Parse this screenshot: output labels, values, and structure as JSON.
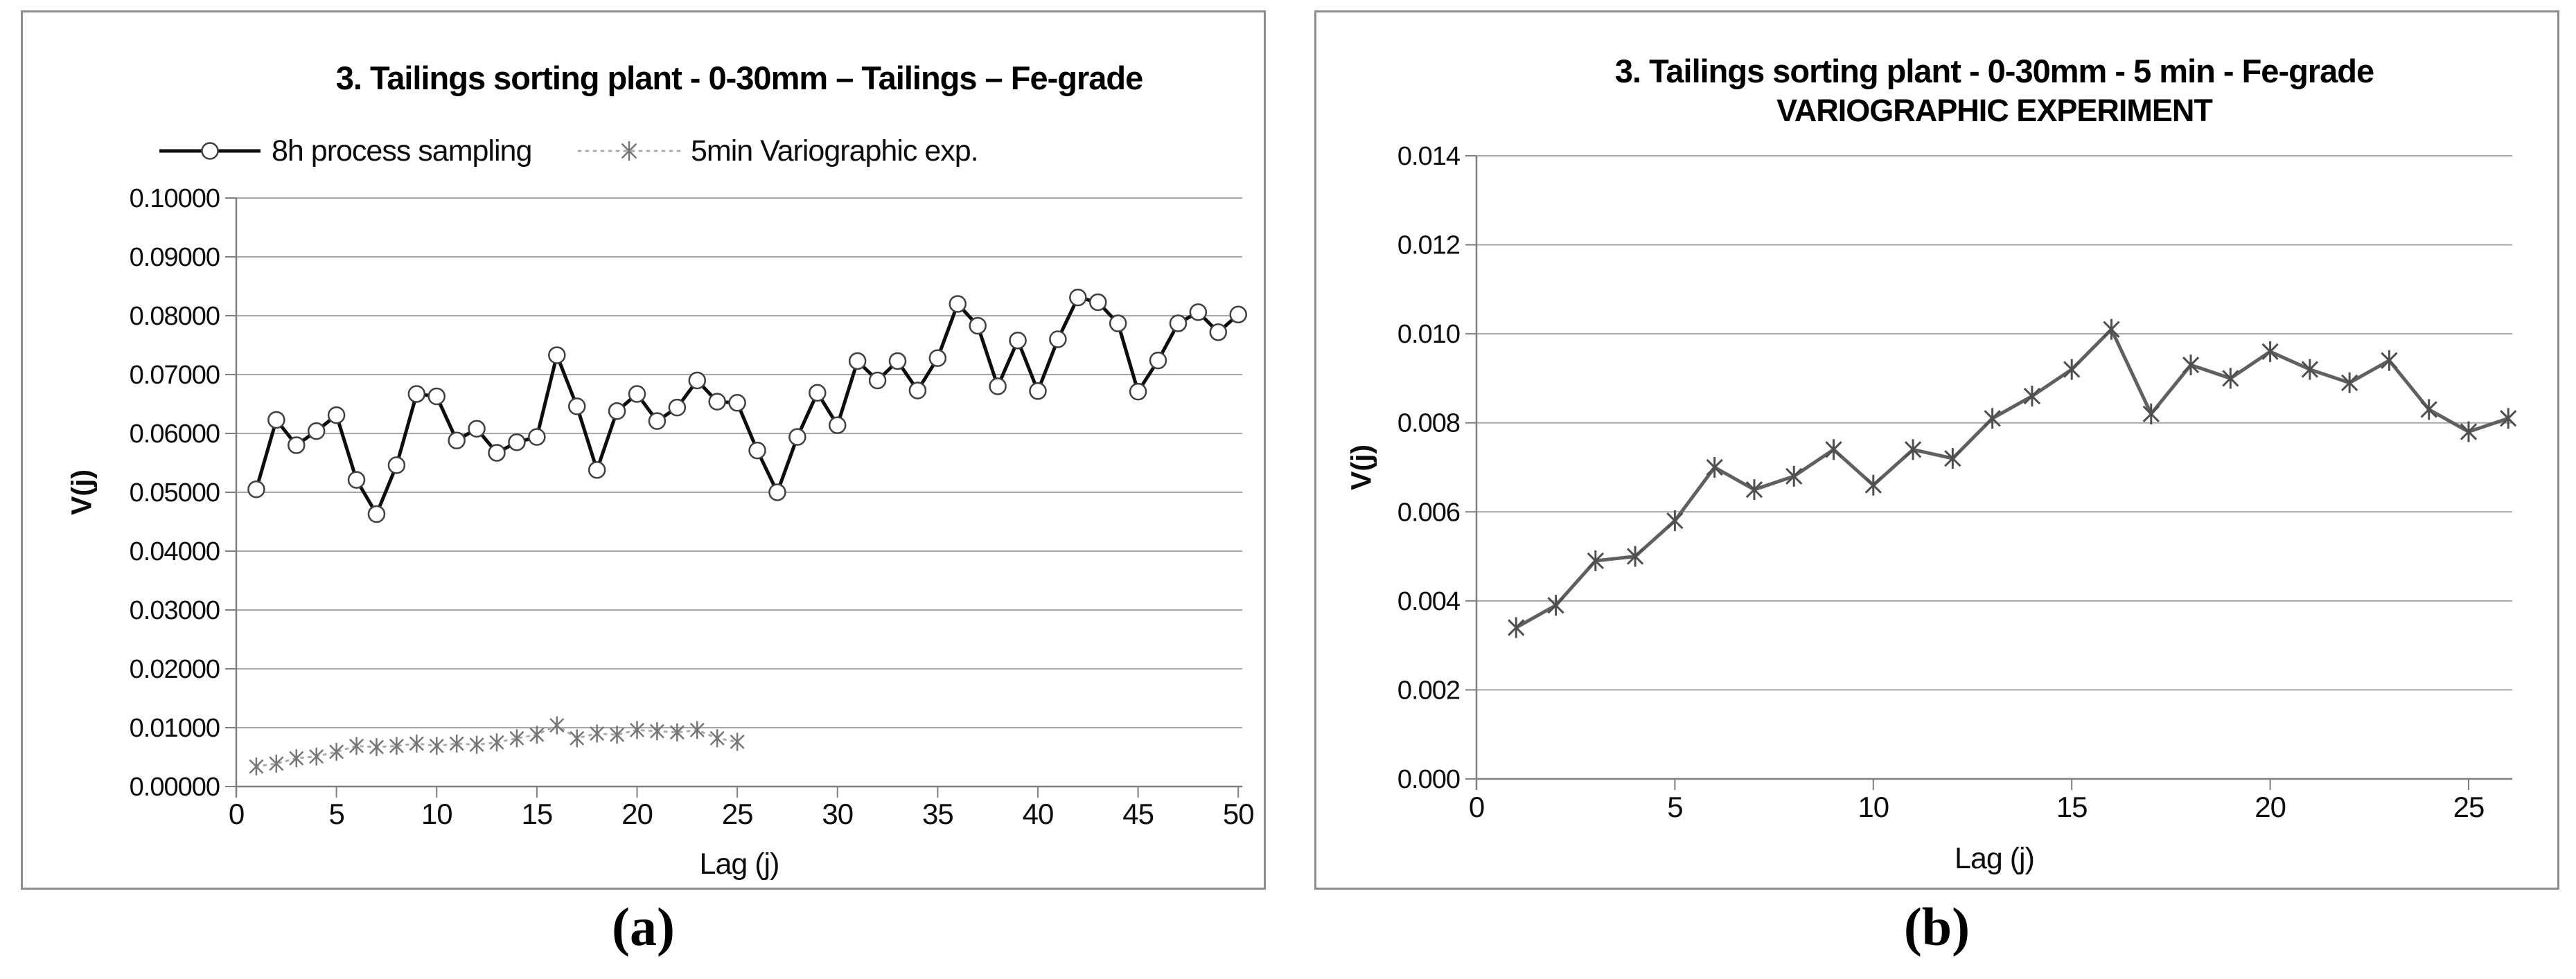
{
  "figure": {
    "caption_a": "(a)",
    "caption_b": "(b)"
  },
  "chart_data": [
    {
      "id": "a",
      "type": "line",
      "title": "3. Tailings sorting plant - 0-30mm – Tailings – Fe-grade",
      "xlabel": "Lag (j)",
      "ylabel": "V(j)",
      "caption": "(a)",
      "grid": true,
      "legend_position": "top",
      "xlim": [
        0,
        50.2
      ],
      "x_ticks": [
        0,
        5,
        10,
        15,
        20,
        25,
        30,
        35,
        40,
        45,
        50
      ],
      "ylim": [
        0,
        0.1
      ],
      "y_tick_step": 0.01,
      "y_tick_decimals": 5,
      "series": [
        {
          "name": "8h process sampling",
          "marker": "circle",
          "line_style": "solid",
          "line_color": "#0d0d0d",
          "marker_color": "#404040",
          "x": [
            1,
            2,
            3,
            4,
            5,
            6,
            7,
            8,
            9,
            10,
            11,
            12,
            13,
            14,
            15,
            16,
            17,
            18,
            19,
            20,
            21,
            22,
            23,
            24,
            25,
            26,
            27,
            28,
            29,
            30,
            31,
            32,
            33,
            34,
            35,
            36,
            37,
            38,
            39,
            40,
            41,
            42,
            43,
            44,
            45,
            46,
            47,
            48,
            49,
            50
          ],
          "values": [
            0.0505,
            0.0623,
            0.058,
            0.0604,
            0.0631,
            0.0521,
            0.0463,
            0.0546,
            0.0667,
            0.0663,
            0.0588,
            0.0608,
            0.0567,
            0.0585,
            0.0594,
            0.0733,
            0.0646,
            0.0538,
            0.0638,
            0.0667,
            0.0621,
            0.0644,
            0.069,
            0.0654,
            0.0652,
            0.0571,
            0.05,
            0.0594,
            0.0669,
            0.0614,
            0.0723,
            0.069,
            0.0723,
            0.0673,
            0.0728,
            0.082,
            0.0783,
            0.068,
            0.0758,
            0.0672,
            0.076,
            0.0831,
            0.0823,
            0.0787,
            0.0671,
            0.0724,
            0.0787,
            0.0806,
            0.0772,
            0.0802
          ]
        },
        {
          "name": "5min Variographic exp.",
          "marker": "star",
          "line_style": "dotted",
          "line_color": "#ababab",
          "marker_color": "#767676",
          "x": [
            1,
            2,
            3,
            4,
            5,
            6,
            7,
            8,
            9,
            10,
            11,
            12,
            13,
            14,
            15,
            16,
            17,
            18,
            19,
            20,
            21,
            22,
            23,
            24,
            25
          ],
          "values": [
            0.0034,
            0.0039,
            0.0048,
            0.0051,
            0.0059,
            0.0069,
            0.0067,
            0.0069,
            0.0073,
            0.0069,
            0.0073,
            0.0071,
            0.0075,
            0.0082,
            0.0088,
            0.0104,
            0.0082,
            0.009,
            0.0088,
            0.0096,
            0.0094,
            0.0092,
            0.0096,
            0.0082,
            0.0076
          ]
        }
      ]
    },
    {
      "id": "b",
      "type": "line",
      "title": "3. Tailings sorting plant - 0-30mm - 5 min - Fe-grade",
      "subtitle": "VARIOGRAPHIC EXPERIMENT",
      "xlabel": "Lag (j)",
      "ylabel": "V(j)",
      "caption": "(b)",
      "grid": true,
      "legend_position": "none",
      "xlim": [
        0,
        26.1
      ],
      "x_ticks": [
        0,
        5,
        10,
        15,
        20,
        25
      ],
      "ylim": [
        0,
        0.014
      ],
      "y_tick_step": 0.002,
      "y_tick_decimals": 3,
      "series": [
        {
          "name": "5 min variographic experiment",
          "marker": "star",
          "line_style": "solid",
          "line_color": "#606060",
          "marker_color": "#4f4f4f",
          "x": [
            1,
            2,
            3,
            4,
            5,
            6,
            7,
            8,
            9,
            10,
            11,
            12,
            13,
            14,
            15,
            16,
            17,
            18,
            19,
            20,
            21,
            22,
            23,
            24,
            25,
            26
          ],
          "values": [
            0.0034,
            0.0039,
            0.0049,
            0.005,
            0.0058,
            0.007,
            0.0065,
            0.0068,
            0.0074,
            0.0066,
            0.0074,
            0.0072,
            0.0081,
            0.0086,
            0.0092,
            0.0101,
            0.0082,
            0.0093,
            0.009,
            0.0096,
            0.0092,
            0.0089,
            0.0094,
            0.0083,
            0.0078,
            0.0081
          ]
        }
      ]
    }
  ]
}
